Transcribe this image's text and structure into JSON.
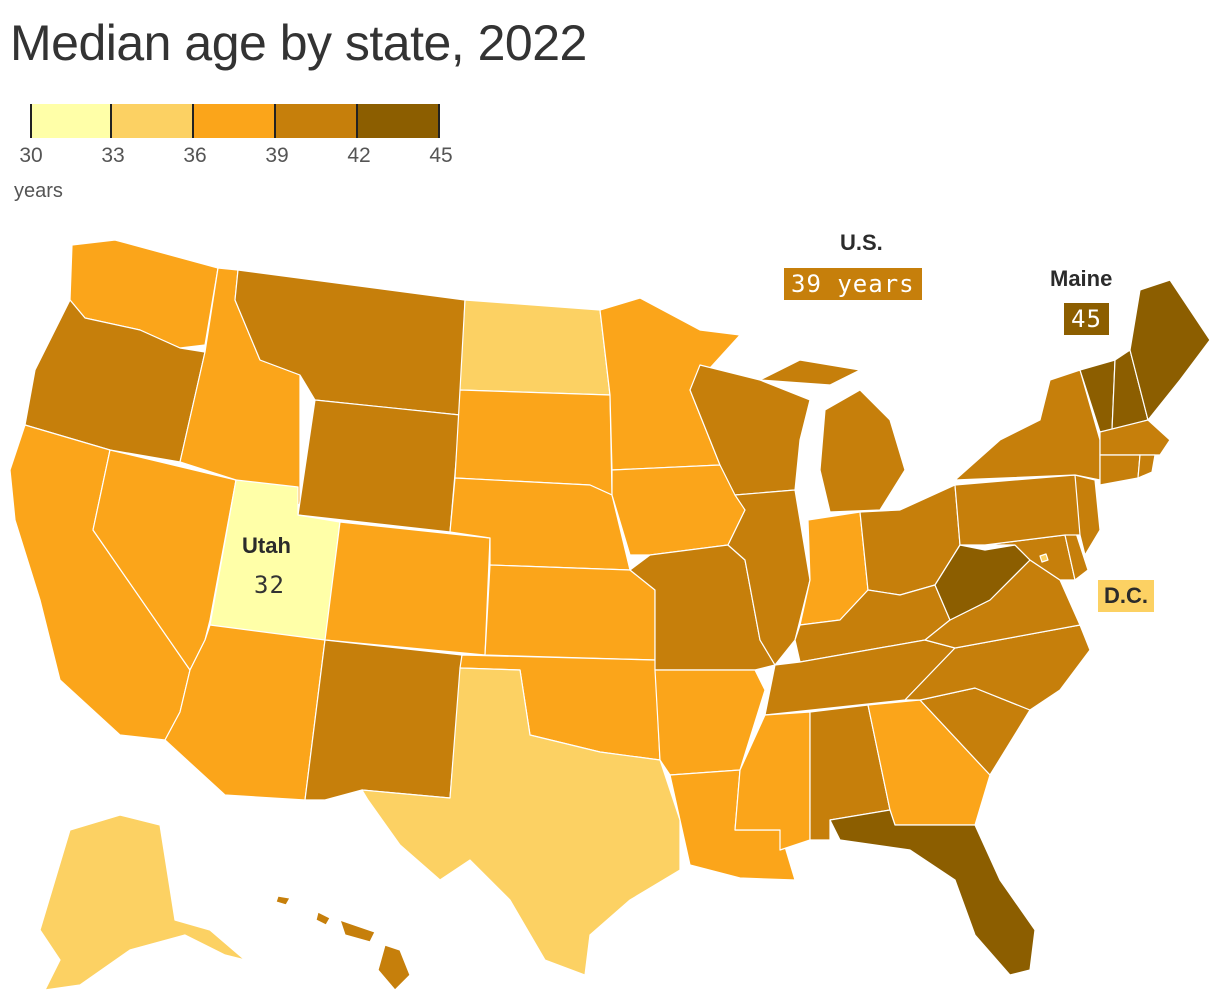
{
  "title": "Median age by state, 2022",
  "legend": {
    "ticks": [
      "30",
      "33",
      "36",
      "39",
      "42",
      "45"
    ],
    "unit": "years",
    "colors": [
      "#ffffa8",
      "#fcd163",
      "#fba51a",
      "#c67f0b",
      "#8c5e00"
    ]
  },
  "callouts": {
    "us_label": "U.S.",
    "us_value": "39 years",
    "maine_label": "Maine",
    "maine_value": "45",
    "utah_label": "Utah",
    "utah_value": "32",
    "dc_label": "D.C."
  },
  "map_data": {
    "type": "choropleth",
    "measure": "median age",
    "unit": "years",
    "bins": [
      [
        30,
        33
      ],
      [
        33,
        36
      ],
      [
        36,
        39
      ],
      [
        39,
        42
      ],
      [
        42,
        45
      ]
    ],
    "regions": {
      "Washington": "36-39",
      "Oregon": "39-42",
      "California": "36-39",
      "Nevada": "36-39",
      "Idaho": "36-39",
      "Montana": "39-42",
      "Wyoming": "39-42",
      "Utah": 32,
      "Arizona": "36-39",
      "Colorado": "36-39",
      "New Mexico": "39-42",
      "North Dakota": "33-36",
      "South Dakota": "36-39",
      "Nebraska": "36-39",
      "Kansas": "36-39",
      "Oklahoma": "36-39",
      "Texas": "33-36",
      "Minnesota": "36-39",
      "Iowa": "36-39",
      "Missouri": "39-42",
      "Arkansas": "36-39",
      "Louisiana": "36-39",
      "Wisconsin": "39-42",
      "Illinois": "39-42",
      "Michigan": "39-42",
      "Indiana": "36-39",
      "Ohio": "39-42",
      "Kentucky": "39-42",
      "Tennessee": "39-42",
      "Mississippi": "36-39",
      "Alabama": "39-42",
      "Georgia": "36-39",
      "Florida": "42-45",
      "South Carolina": "39-42",
      "North Carolina": "39-42",
      "Virginia": "39-42",
      "West Virginia": "42-45",
      "Maryland": "39-42",
      "Delaware": "39-42",
      "New Jersey": "39-42",
      "Pennsylvania": "39-42",
      "New York": "39-42",
      "Connecticut": "39-42",
      "Rhode Island": "39-42",
      "Massachusetts": "39-42",
      "Vermont": "42-45",
      "New Hampshire": "42-45",
      "Maine": 45,
      "District of Columbia": "33-36",
      "Alaska": "33-36",
      "Hawaii": "39-42",
      "United States": 39
    }
  }
}
